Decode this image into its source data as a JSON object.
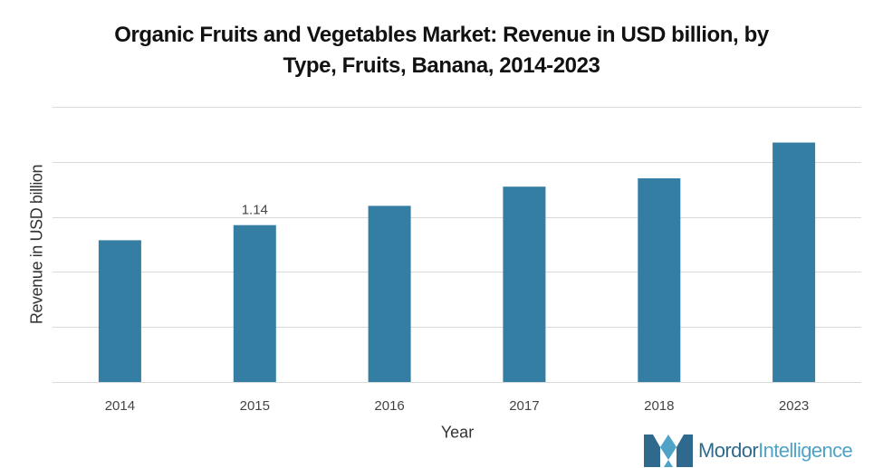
{
  "chart_data": {
    "type": "bar",
    "title_lines": [
      "Organic Fruits and Vegetables Market: Revenue in USD billion, by",
      "Type, Fruits, Banana, 2014-2023"
    ],
    "xlabel": "Year",
    "ylabel": "Revenue in USD billion",
    "categories": [
      "2014",
      "2015",
      "2016",
      "2017",
      "2018",
      "2023"
    ],
    "values": [
      1.03,
      1.14,
      1.28,
      1.42,
      1.48,
      1.74
    ],
    "value_labels": [
      "",
      "1.14",
      "",
      "",
      "",
      ""
    ],
    "ylim": [
      0,
      2.0
    ],
    "gridlines": 5,
    "grid": true,
    "legend": "none",
    "bar_color": "#347ea4",
    "grid_color": "#d9d9d9"
  },
  "branding": {
    "logo_name": "Mordor",
    "logo_suffix": "Intelligence",
    "colors": {
      "dark": "#2f6a8e",
      "light": "#4fa3c7"
    }
  }
}
